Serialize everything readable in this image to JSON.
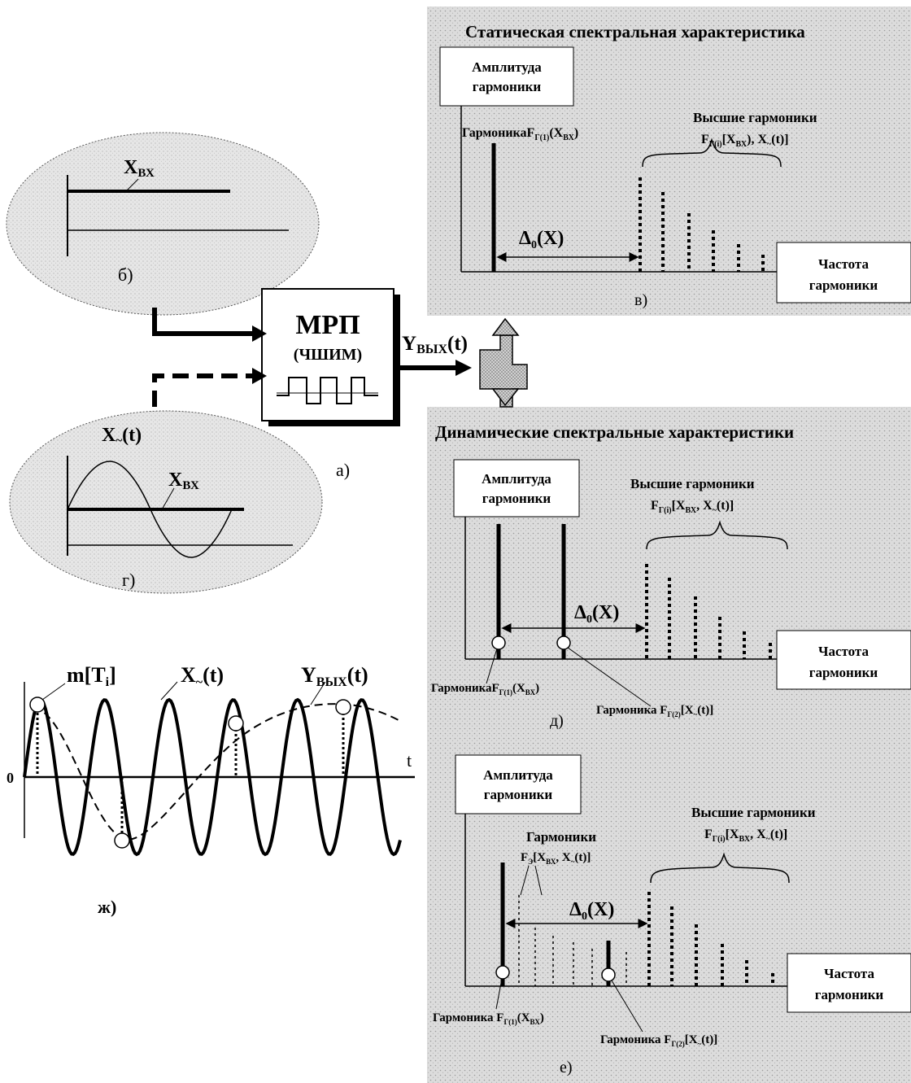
{
  "block": {
    "title": "МРП",
    "subtitle": "(ЧШИМ)",
    "output": "Y",
    "output_sub": "ВЫХ",
    "output_arg": "(t)",
    "label": "а)"
  },
  "panel_b": {
    "label": "б)",
    "signal": "X",
    "signal_sub": "ВХ"
  },
  "panel_g": {
    "label": "г)",
    "signal_ac": "X",
    "signal_ac_sub": "~",
    "signal_ac_arg": "(t)",
    "signal": "X",
    "signal_sub": "ВХ"
  },
  "panel_zh": {
    "label": "ж)",
    "marker": "m[T",
    "marker_sub": "i",
    "marker_end": "]",
    "signal_ac": "X",
    "signal_ac_sub": "~",
    "signal_ac_arg": "(t)",
    "output": "Y",
    "output_sub": "ВЫХ",
    "output_arg": "(t)",
    "axis_t": "t",
    "axis_zero": "0"
  },
  "panel_v": {
    "title": "Статическая спектральная характеристика",
    "amp_line1": "Амплитуда",
    "amp_line2": "гармоники",
    "freq_line1": "Частота",
    "freq_line2": "гармоники",
    "higher_line1": "Высшие гармоники",
    "higher_line2": "F",
    "higher_line2_sub": "Г(i)",
    "higher_line2_end": "[X",
    "higher_line2_sub2": "ВХ",
    "higher_line2_end2": "), X",
    "higher_line2_sub3": "~",
    "higher_line2_end3": "(t)]",
    "fund": "ГармоникаF",
    "fund_sub": "Г(1)",
    "fund_end": "(X",
    "fund_sub2": "ВХ",
    "fund_end2": ")",
    "delta": "Δ",
    "delta_sub": "0",
    "delta_end": "(X)",
    "label": "в)"
  },
  "panel_d": {
    "title": "Динамические спектральные характеристики",
    "amp_line1": "Амплитуда",
    "amp_line2": "гармоники",
    "freq_line1": "Частота",
    "freq_line2": "гармоники",
    "higher_line1": "Высшие гармоники",
    "higher_line2": "F",
    "higher_line2_sub": "Г(i)",
    "higher_line2_end": "[X",
    "higher_line2_sub2": "ВХ",
    "higher_line2_end2": ", X",
    "higher_line2_sub3": "~",
    "higher_line2_end3": "(t)]",
    "fund1": "ГармоникаF",
    "fund1_sub": "Г(1)",
    "fund1_end": "(X",
    "fund1_sub2": "ВХ",
    "fund1_end2": ")",
    "fund2": "Гармоника F",
    "fund2_sub": "Г(2)",
    "fund2_end": "[X",
    "fund2_sub2": "~",
    "fund2_end2": "(t)]",
    "delta": "Δ",
    "delta_sub": "0",
    "delta_end": "(X)",
    "label": "д)"
  },
  "panel_e": {
    "amp_line1": "Амплитуда",
    "amp_line2": "гармоники",
    "freq_line1": "Частота",
    "freq_line2": "гармоники",
    "higher_line1": "Высшие гармоники",
    "higher_line2": "F",
    "higher_line2_sub": "Г(i)",
    "higher_line2_end": "[X",
    "higher_line2_sub2": "ВХ",
    "higher_line2_end2": ", X",
    "higher_line2_sub3": "~",
    "higher_line2_end3": "(t)]",
    "comb_line1": "Гармоники",
    "comb_line2": "F",
    "comb_line2_sub": "Э",
    "comb_line2_end": "[X",
    "comb_line2_sub2": "ВХ",
    "comb_line2_end2": ", X",
    "comb_line2_sub3": "~",
    "comb_line2_end3": "(t)]",
    "fund1": "Гармоника F",
    "fund1_sub": "Г(1)",
    "fund1_end": "(X",
    "fund1_sub2": "ВХ",
    "fund1_end2": ")",
    "fund2": "Гармоника F",
    "fund2_sub": "Г(2)",
    "fund2_end": "[X",
    "fund2_sub2": "~",
    "fund2_end2": "(t)]",
    "delta": "Δ",
    "delta_sub": "0",
    "delta_end": "(X)",
    "label": "е)"
  },
  "colors": {
    "panel_bg": "#d9d9d9",
    "ink": "#000000",
    "arrow_fill": "#bdbdbd",
    "ellipse_fill": "#e4e4e4"
  }
}
